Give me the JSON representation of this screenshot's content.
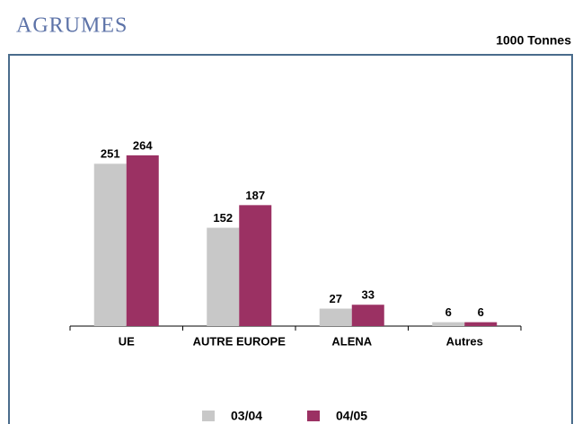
{
  "chart_data": {
    "type": "bar",
    "title": "AGRUMES",
    "subtitle": "1000 Tonnes",
    "categories": [
      "UE",
      "AUTRE EUROPE",
      "ALENA",
      "Autres"
    ],
    "series": [
      {
        "name": "03/04",
        "color": "#c8c8c8",
        "values": [
          251,
          152,
          27,
          6
        ]
      },
      {
        "name": "04/05",
        "color": "#9b3163",
        "values": [
          264,
          187,
          33,
          6
        ]
      }
    ],
    "legend": "bottom"
  }
}
